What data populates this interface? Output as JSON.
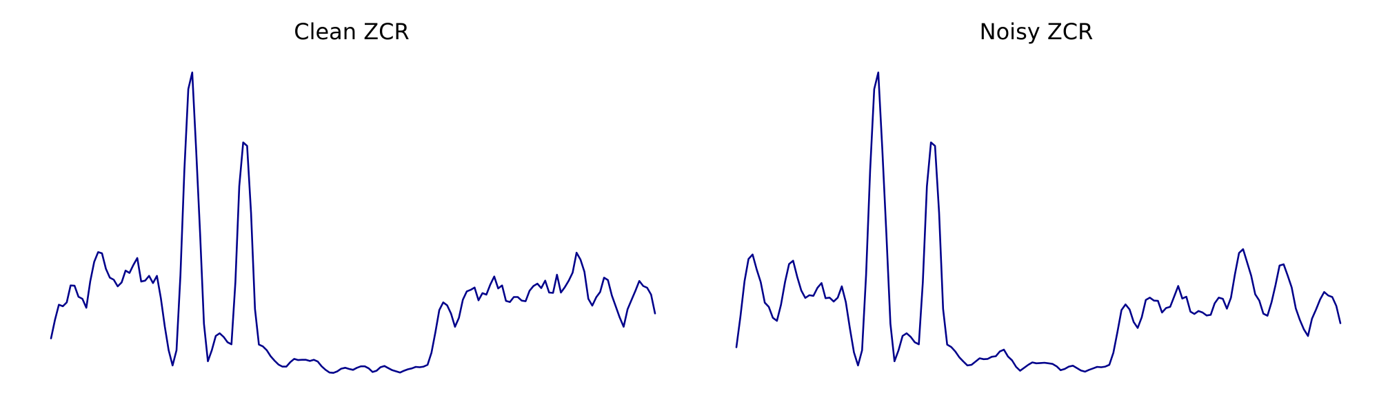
{
  "figure": {
    "line_color": "#00008b",
    "background": "#ffffff"
  },
  "chart_data": [
    {
      "type": "line",
      "title": "Clean ZCR",
      "xlabel": "",
      "ylabel": "",
      "grid": false,
      "axes_visible": false,
      "ylim": [
        0,
        100
      ],
      "series": [
        {
          "values": [
            8.9,
            15.1,
            20.2,
            19.7,
            21.0,
            26.7,
            26.6,
            22.9,
            22.2,
            19.2,
            28.1,
            34.6,
            37.9,
            37.5,
            32.3,
            29.3,
            28.6,
            26.4,
            27.7,
            31.7,
            30.9,
            33.6,
            35.9,
            28.0,
            28.3,
            29.9,
            27.5,
            29.9,
            22.4,
            12.9,
            4.9,
            -0.2,
            4.9,
            30.2,
            65.5,
            92.7,
            98.3,
            72.2,
            44.2,
            13.8,
            1.2,
            4.9,
            9.7,
            10.6,
            9.4,
            7.6,
            6.9,
            27.8,
            60.0,
            74.8,
            73.6,
            51.1,
            18.8,
            6.8,
            6.2,
            4.9,
            2.9,
            1.4,
            0.1,
            -0.6,
            -0.6,
            0.9,
            2.0,
            1.6,
            1.7,
            1.7,
            1.3,
            1.7,
            1.1,
            -0.5,
            -1.7,
            -2.6,
            -2.7,
            -2.2,
            -1.3,
            -1.0,
            -1.4,
            -1.7,
            -1.0,
            -0.5,
            -0.5,
            -1.2,
            -2.4,
            -2.0,
            -0.8,
            -0.4,
            -1.1,
            -1.8,
            -2.2,
            -2.6,
            -2.0,
            -1.5,
            -1.2,
            -0.7,
            -0.8,
            -0.6,
            0.0,
            4.1,
            11.0,
            18.4,
            21.0,
            20.0,
            17.2,
            12.8,
            15.8,
            21.9,
            24.7,
            25.2,
            26.0,
            21.7,
            24.1,
            23.6,
            27.0,
            29.7,
            25.7,
            26.7,
            21.5,
            21.1,
            22.8,
            22.8,
            21.6,
            21.4,
            24.9,
            26.5,
            27.3,
            25.8,
            28.3,
            24.3,
            24.2,
            30.3,
            24.3,
            26.1,
            28.3,
            31.0,
            37.7,
            35.4,
            31.3,
            22.2,
            19.9,
            22.7,
            24.5,
            29.3,
            28.5,
            23.3,
            19.6,
            15.9,
            12.8,
            18.7,
            21.8,
            24.9,
            28.2,
            26.5,
            25.9,
            23.6,
            17.3
          ]
        }
      ]
    },
    {
      "type": "line",
      "title": "Noisy ZCR",
      "xlabel": "",
      "ylabel": "",
      "grid": false,
      "axes_visible": false,
      "ylim": [
        0,
        100
      ],
      "series": [
        {
          "values": [
            5.9,
            16.3,
            28.1,
            35.6,
            37.1,
            32.1,
            27.8,
            20.9,
            19.5,
            15.8,
            14.8,
            20.2,
            27.9,
            33.9,
            35.0,
            29.6,
            25.0,
            22.5,
            23.4,
            23.2,
            25.9,
            27.5,
            22.4,
            22.6,
            21.3,
            22.6,
            26.4,
            21.1,
            12.3,
            4.2,
            -0.2,
            4.9,
            30.2,
            65.5,
            92.7,
            98.3,
            72.2,
            44.2,
            13.8,
            1.2,
            4.9,
            9.7,
            10.6,
            9.4,
            7.6,
            6.9,
            27.8,
            60.0,
            74.8,
            73.6,
            51.1,
            18.8,
            6.8,
            6.0,
            4.5,
            2.5,
            1.1,
            -0.2,
            0.0,
            1.1,
            2.2,
            1.9,
            2.0,
            2.7,
            2.9,
            4.5,
            5.1,
            2.8,
            1.5,
            -0.7,
            -2.0,
            -1.0,
            0.0,
            0.8,
            0.5,
            0.6,
            0.7,
            0.5,
            0.3,
            -0.5,
            -1.8,
            -1.4,
            -0.6,
            -0.3,
            -1.1,
            -1.9,
            -2.3,
            -1.7,
            -1.2,
            -0.7,
            -0.8,
            -0.6,
            0.0,
            4.1,
            11.0,
            18.4,
            20.3,
            18.6,
            14.4,
            12.4,
            16.0,
            21.8,
            22.6,
            21.6,
            21.5,
            17.6,
            19.1,
            19.5,
            23.0,
            26.5,
            22.3,
            22.9,
            17.9,
            17.1,
            18.1,
            17.6,
            16.6,
            16.8,
            20.7,
            22.6,
            22.2,
            18.9,
            22.6,
            30.5,
            37.6,
            38.9,
            34.4,
            29.9,
            23.7,
            21.6,
            17.2,
            16.5,
            21.0,
            26.8,
            33.4,
            33.8,
            30.0,
            26.0,
            19.0,
            15.1,
            11.9,
            9.7,
            15.5,
            18.6,
            22.0,
            24.5,
            23.3,
            22.8,
            19.8,
            14.0
          ]
        }
      ]
    }
  ]
}
